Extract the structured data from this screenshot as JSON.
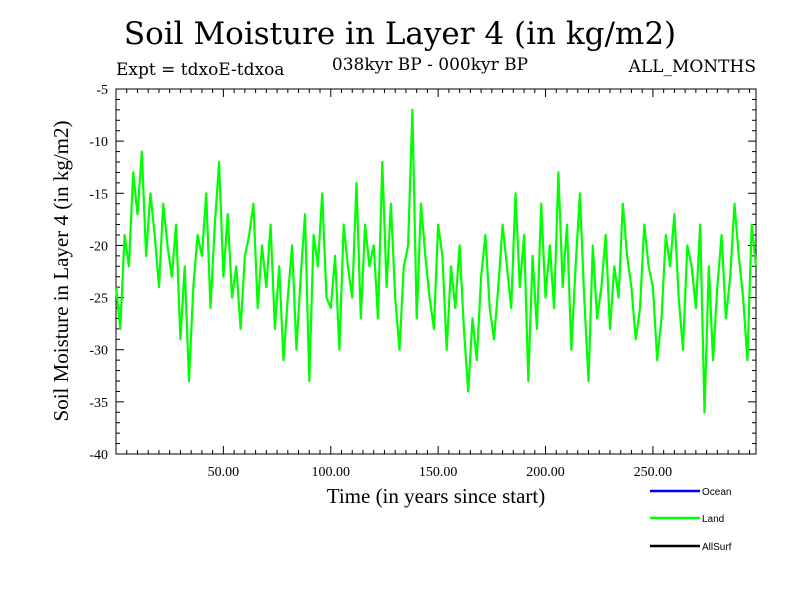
{
  "header": {
    "title": "Soil Moisture in Layer 4 (in kg/m2)",
    "experiment": "Expt = tdxoE-tdxoa",
    "period": "038kyr BP - 000kyr BP",
    "months": "ALL_MONTHS"
  },
  "chart_data": {
    "type": "line",
    "title": "Soil Moisture in Layer 4 (in kg/m2)",
    "xlabel": "Time (in years since start)",
    "ylabel": "Soil Moisture in Layer 4 (in kg/m2)",
    "xlim": [
      0,
      298
    ],
    "ylim": [
      -40,
      -5
    ],
    "x_ticks": [
      50,
      100,
      150,
      200,
      250
    ],
    "x_tick_labels": [
      "50.00",
      "100.00",
      "150.00",
      "200.00",
      "250.00"
    ],
    "y_ticks": [
      -40,
      -35,
      -30,
      -25,
      -20,
      -15,
      -10,
      -5
    ],
    "y_tick_labels": [
      "-40",
      "-35",
      "-30",
      "-25",
      "-20",
      "-15",
      "-10",
      "-5"
    ],
    "grid": false,
    "legend_position": "bottom-right",
    "series": [
      {
        "name": "Ocean",
        "color": "#0000ff",
        "x": [],
        "values": []
      },
      {
        "name": "Land",
        "color": "#00ff00",
        "x": [
          0,
          2,
          4,
          6,
          8,
          10,
          12,
          14,
          16,
          18,
          20,
          22,
          24,
          26,
          28,
          30,
          32,
          34,
          36,
          38,
          40,
          42,
          44,
          46,
          48,
          50,
          52,
          54,
          56,
          58,
          60,
          62,
          64,
          66,
          68,
          70,
          72,
          74,
          76,
          78,
          80,
          82,
          84,
          86,
          88,
          90,
          92,
          94,
          96,
          98,
          100,
          102,
          104,
          106,
          108,
          110,
          112,
          114,
          116,
          118,
          120,
          122,
          124,
          126,
          128,
          130,
          132,
          134,
          136,
          138,
          140,
          142,
          144,
          146,
          148,
          150,
          152,
          154,
          156,
          158,
          160,
          162,
          164,
          166,
          168,
          170,
          172,
          174,
          176,
          178,
          180,
          182,
          184,
          186,
          188,
          190,
          192,
          194,
          196,
          198,
          200,
          202,
          204,
          206,
          208,
          210,
          212,
          214,
          216,
          218,
          220,
          222,
          224,
          226,
          228,
          230,
          232,
          234,
          236,
          238,
          240,
          242,
          244,
          246,
          248,
          250,
          252,
          254,
          256,
          258,
          260,
          262,
          264,
          266,
          268,
          270,
          272,
          274,
          276,
          278,
          280,
          282,
          284,
          286,
          288,
          290,
          292,
          294,
          296,
          298
        ],
        "values": [
          -24,
          -28,
          -19,
          -22,
          -13,
          -17,
          -11,
          -21,
          -15,
          -19,
          -24,
          -16,
          -20,
          -23,
          -18,
          -29,
          -22,
          -33,
          -24,
          -19,
          -21,
          -15,
          -26,
          -18,
          -12,
          -23,
          -17,
          -25,
          -22,
          -28,
          -21,
          -19,
          -16,
          -26,
          -20,
          -24,
          -18,
          -28,
          -22,
          -31,
          -25,
          -20,
          -30,
          -23,
          -17,
          -33,
          -19,
          -22,
          -15,
          -25,
          -26,
          -21,
          -30,
          -18,
          -22,
          -25,
          -14,
          -27,
          -18,
          -22,
          -20,
          -27,
          -12,
          -24,
          -16,
          -25,
          -30,
          -22,
          -20,
          -7,
          -27,
          -16,
          -21,
          -25,
          -28,
          -18,
          -21,
          -30,
          -22,
          -26,
          -20,
          -28,
          -34,
          -27,
          -31,
          -23,
          -19,
          -26,
          -29,
          -24,
          -18,
          -22,
          -26,
          -15,
          -24,
          -19,
          -33,
          -21,
          -28,
          -16,
          -25,
          -20,
          -26,
          -13,
          -24,
          -18,
          -30,
          -22,
          -15,
          -25,
          -33,
          -20,
          -27,
          -24,
          -19,
          -28,
          -22,
          -25,
          -16,
          -21,
          -24,
          -29,
          -26,
          -18,
          -22,
          -24,
          -31,
          -27,
          -19,
          -22,
          -17,
          -25,
          -30,
          -20,
          -22,
          -26,
          -18,
          -36,
          -22,
          -31,
          -24,
          -19,
          -27,
          -23,
          -16,
          -21,
          -25,
          -31,
          -18,
          -22
        ]
      },
      {
        "name": "AllSurf",
        "color": "#000000",
        "x": [],
        "values": []
      }
    ]
  }
}
